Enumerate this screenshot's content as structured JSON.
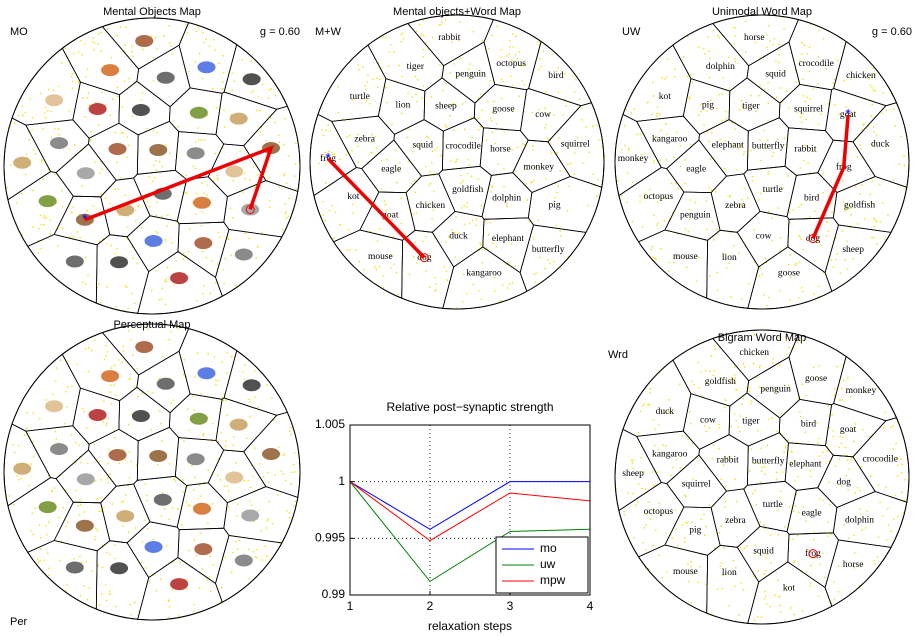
{
  "maps": [
    {
      "title": "Mental Objects Map",
      "label": "MO",
      "g": "g = 0.60"
    },
    {
      "title": "Mental objects+Word Map",
      "label": "M+W",
      "words": [
        "crocodile",
        "goldfish",
        "squid",
        "horse",
        "chicken",
        "sheep",
        "dolphin",
        "eagle",
        "goose",
        "duck",
        "lion",
        "monkey",
        "goat",
        "penguin",
        "elephant",
        "zebra",
        "cow",
        "dog",
        "tiger",
        "pig",
        "kot",
        "octopus",
        "kangaroo",
        "turtle",
        "squirrel",
        "mouse",
        "rabbit",
        "butterfly",
        "frog",
        "bird"
      ]
    },
    {
      "title": "Unimodal Word Map",
      "label": "UW",
      "g": "g = 0.60",
      "words": [
        "butterfly",
        "turtle",
        "elephant",
        "rabbit",
        "zebra",
        "tiger",
        "bird",
        "eagle",
        "squirrel",
        "cow",
        "pig",
        "frog",
        "penguin",
        "squid",
        "dog",
        "kangaroo",
        "goat",
        "lion",
        "dolphin",
        "goldfish",
        "octopus",
        "crocodile",
        "goose",
        "kot",
        "duck",
        "mouse",
        "horse",
        "sheep",
        "monkey",
        "chicken"
      ]
    },
    {
      "title": "Perceptual Map",
      "label": "Per"
    },
    {
      "title": "Bigram Word Map",
      "label": "Wrd",
      "words": [
        "butterfly",
        "turtle",
        "rabbit",
        "elephant",
        "zebra",
        "tiger",
        "eagle",
        "squirrel",
        "bird",
        "squid",
        "cow",
        "dog",
        "pig",
        "penguin",
        "frog",
        "kangaroo",
        "goat",
        "lion",
        "goldfish",
        "dolphin",
        "octopus",
        "goose",
        "kot",
        "duck",
        "crocodile",
        "mouse",
        "chicken",
        "horse",
        "sheep",
        "monkey"
      ]
    }
  ],
  "chart_data": {
    "type": "line",
    "title": "Relative post−synaptic strength",
    "x_label": "relaxation steps",
    "x": [
      1,
      2,
      3,
      4
    ],
    "xlim": [
      1,
      4
    ],
    "xticks": [
      1,
      2,
      3,
      4
    ],
    "ylim": [
      0.99,
      1.005
    ],
    "yticks": [
      0.99,
      0.995,
      1,
      1.005
    ],
    "grid": true,
    "legend": "lower right",
    "series": [
      {
        "name": "mo",
        "color": "#0000ff",
        "values": [
          1,
          0.9958,
          1,
          1
        ]
      },
      {
        "name": "uw",
        "color": "#008000",
        "values": [
          1,
          0.9912,
          0.9956,
          0.9958
        ]
      },
      {
        "name": "mpw",
        "color": "#ff0000",
        "values": [
          1,
          0.9948,
          0.999,
          0.9983
        ]
      }
    ]
  }
}
